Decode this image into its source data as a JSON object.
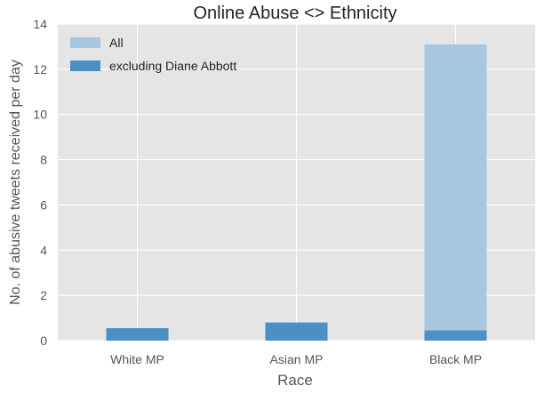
{
  "chart_data": {
    "type": "bar",
    "title": "Online Abuse <> Ethnicity",
    "xlabel": "Race",
    "ylabel": "No. of abusive tweets received per day",
    "categories": [
      "White MP",
      "Asian MP",
      "Black MP"
    ],
    "series": [
      {
        "name": "All",
        "values": [
          0.55,
          0.8,
          13.1
        ],
        "color": "#a6c7df"
      },
      {
        "name": "excluding Diane Abbott",
        "values": [
          0.55,
          0.8,
          0.45
        ],
        "color": "#4a90c4"
      }
    ],
    "ylim": [
      0,
      14
    ],
    "yticks": [
      0,
      2,
      4,
      6,
      8,
      10,
      12,
      14
    ],
    "grid": true,
    "legend_position": "top-left",
    "background_color": "#e5e5e5",
    "grid_color": "#ffffff"
  }
}
